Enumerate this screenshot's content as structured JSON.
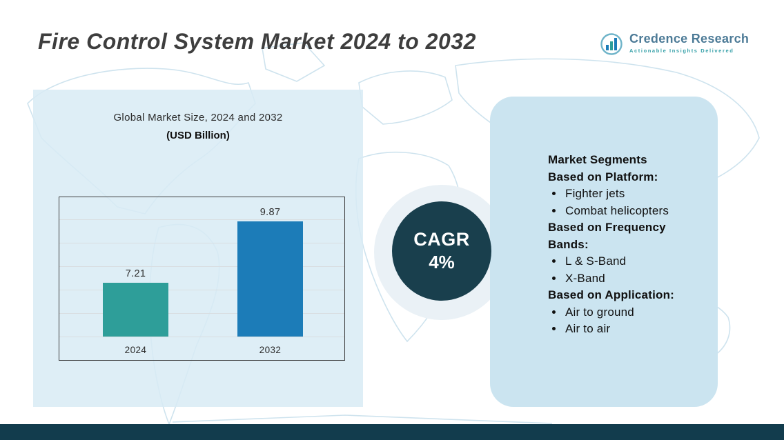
{
  "page": {
    "title": "Fire Control System Market 2024 to 2032"
  },
  "logo": {
    "brand": "Credence Research",
    "tagline": "Actionable Insights Delivered"
  },
  "chart_data": {
    "type": "bar",
    "title": "Global Market Size, 2024 and 2032",
    "subtitle": "(USD Billion)",
    "categories": [
      "2024",
      "2032"
    ],
    "values": [
      7.21,
      9.87
    ],
    "bar_colors": [
      "#2e9e99",
      "#1c7cb8"
    ],
    "ylim": [
      4.9,
      11.0
    ],
    "grid": true,
    "legend": false
  },
  "cagr": {
    "label": "CAGR",
    "value": "4%"
  },
  "segments": {
    "title": "Market Segments",
    "sections": [
      {
        "heading": "Based on Platform:",
        "items": [
          "Fighter jets",
          "Combat helicopters"
        ]
      },
      {
        "heading": "Based on Frequency Bands:",
        "items": [
          "L & S-Band",
          "X-Band"
        ]
      },
      {
        "heading": "Based on Application:",
        "items": [
          "Air to ground",
          "Air to air"
        ]
      }
    ]
  },
  "colors": {
    "cagr_circle": "#193f4d",
    "left_panel": "#d8ebf4",
    "right_panel": "#cbe4f0",
    "footer_bar": "#123c4d"
  }
}
